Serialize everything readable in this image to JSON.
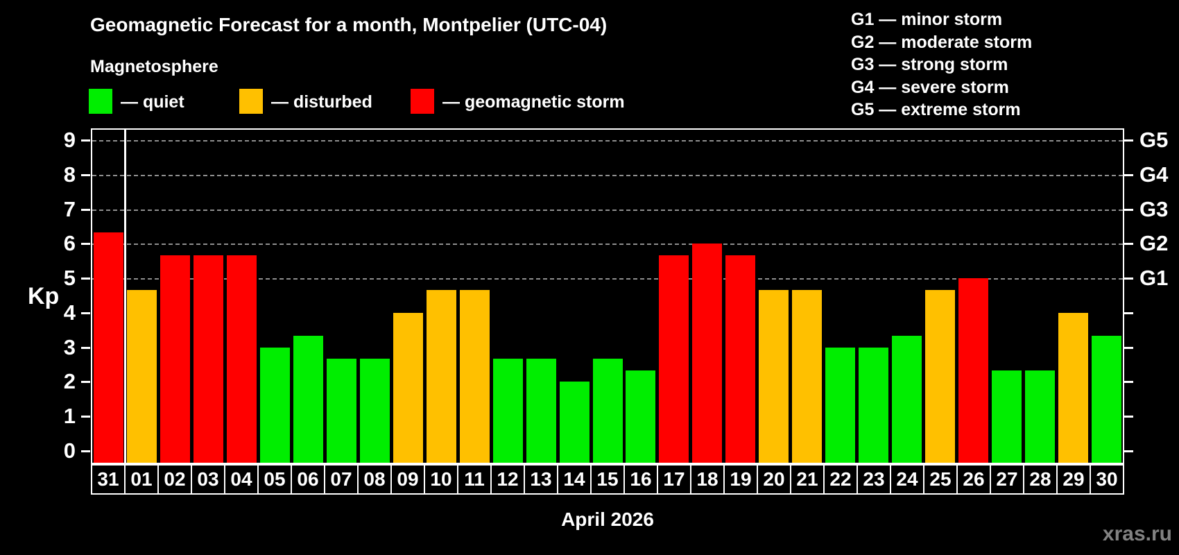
{
  "header": {
    "title": "Geomagnetic Forecast for a month, Montpelier (UTC-04)"
  },
  "legend": {
    "title": "Magnetosphere",
    "items": [
      {
        "key": "quiet",
        "label": "— quiet",
        "color": "#00ee00"
      },
      {
        "key": "disturbed",
        "label": "— disturbed",
        "color": "#ffc000"
      },
      {
        "key": "storm",
        "label": "— geomagnetic storm",
        "color": "#ff0000"
      }
    ]
  },
  "g_legend": [
    "G1 — minor storm",
    "G2 — moderate storm",
    "G3 — strong storm",
    "G4 — severe storm",
    "G5 — extreme storm"
  ],
  "chart_data": {
    "type": "bar",
    "title": "Geomagnetic Forecast for a month, Montpelier (UTC-04)",
    "ylabel": "Kp",
    "xlabel": "April 2026",
    "ylim": [
      0,
      9
    ],
    "yticks": [
      0,
      1,
      2,
      3,
      4,
      5,
      6,
      7,
      8,
      9
    ],
    "gridlines": [
      5,
      6,
      7,
      8,
      9
    ],
    "grid_style": "dashed",
    "right_axis_labels": [
      "G1",
      "G2",
      "G3",
      "G4",
      "G5"
    ],
    "right_axis_positions": [
      5,
      6,
      7,
      8,
      9
    ],
    "legend_position": "top",
    "categories": [
      "31",
      "01",
      "02",
      "03",
      "04",
      "05",
      "06",
      "07",
      "08",
      "09",
      "10",
      "11",
      "12",
      "13",
      "14",
      "15",
      "16",
      "17",
      "18",
      "19",
      "20",
      "21",
      "22",
      "23",
      "24",
      "25",
      "26",
      "27",
      "28",
      "29",
      "30"
    ],
    "values": [
      6.33,
      4.67,
      5.67,
      5.67,
      5.67,
      3.0,
      3.33,
      2.67,
      2.67,
      4.0,
      4.67,
      4.67,
      2.67,
      2.67,
      2.0,
      2.67,
      2.33,
      5.67,
      6.0,
      5.67,
      4.67,
      4.67,
      3.0,
      3.0,
      3.33,
      4.67,
      5.0,
      2.33,
      2.33,
      4.0,
      3.33
    ],
    "states": [
      "storm",
      "disturbed",
      "storm",
      "storm",
      "storm",
      "quiet",
      "quiet",
      "quiet",
      "quiet",
      "disturbed",
      "disturbed",
      "disturbed",
      "quiet",
      "quiet",
      "quiet",
      "quiet",
      "quiet",
      "storm",
      "storm",
      "storm",
      "disturbed",
      "disturbed",
      "quiet",
      "quiet",
      "quiet",
      "disturbed",
      "storm",
      "quiet",
      "quiet",
      "disturbed",
      "quiet"
    ],
    "state_colors": {
      "quiet": "#00ee00",
      "disturbed": "#ffc000",
      "storm": "#ff0000"
    },
    "separator_after_category": "31"
  },
  "footer": {
    "watermark": "xras.ru"
  }
}
